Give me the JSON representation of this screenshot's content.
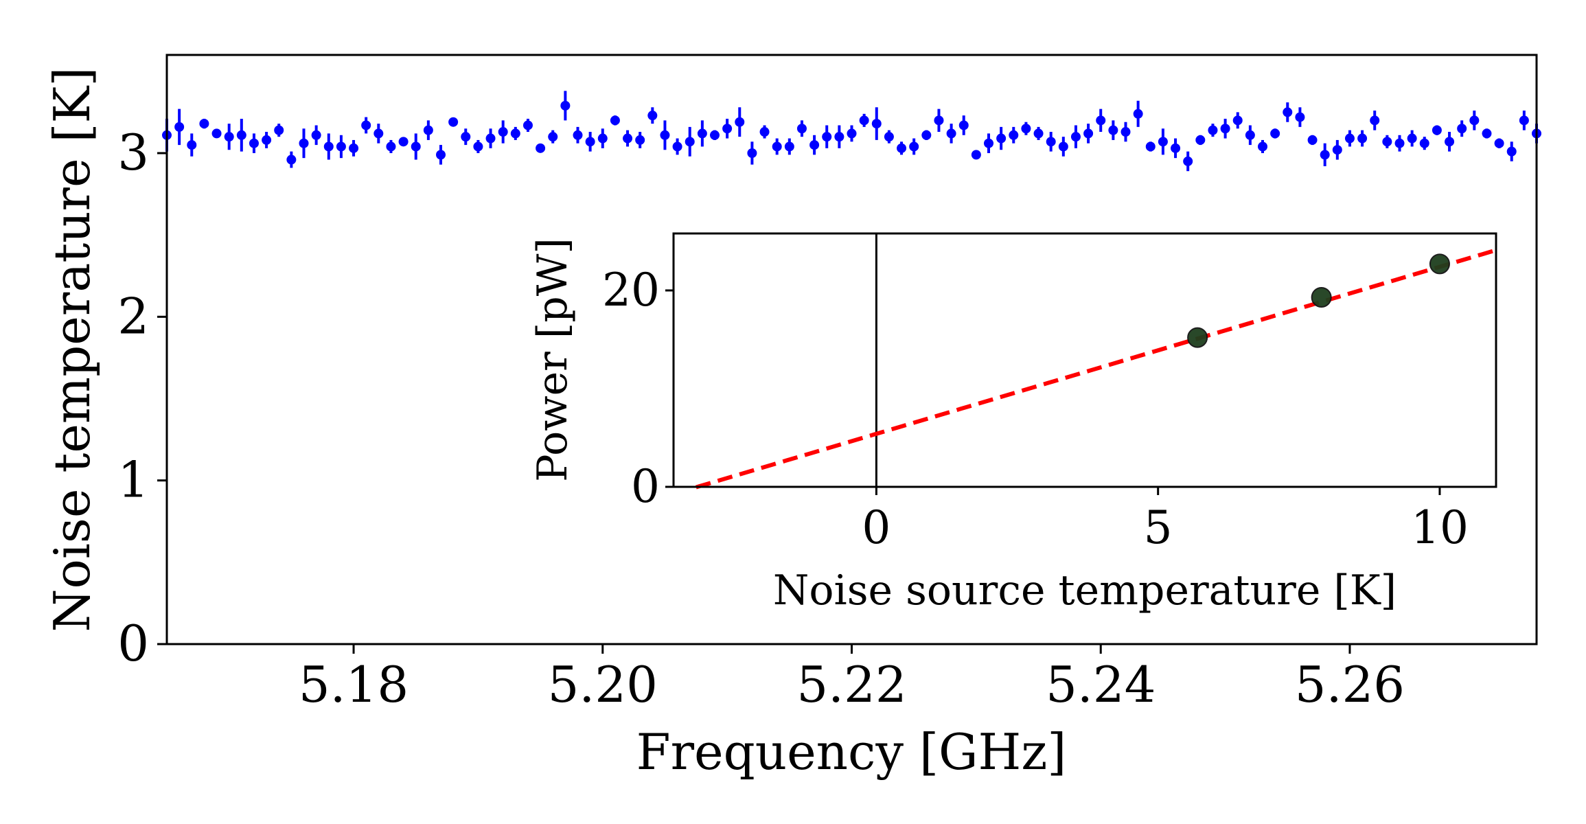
{
  "chart_data": [
    {
      "type": "scatter",
      "name": "main",
      "xlabel": "Frequency [GHz]",
      "ylabel": "Noise temperature [K]",
      "xlim": [
        5.165,
        5.275
      ],
      "ylim": [
        0,
        3.6
      ],
      "xticks": [
        5.18,
        5.2,
        5.22,
        5.24,
        5.26
      ],
      "xtick_labels": [
        "5.18",
        "5.20",
        "5.22",
        "5.24",
        "5.26"
      ],
      "yticks": [
        0,
        1,
        2,
        3
      ],
      "ytick_labels": [
        "0",
        "1",
        "2",
        "3"
      ],
      "series": [
        {
          "name": "noise temperature",
          "color": "#0000ff",
          "x_start": 5.165,
          "x_step": 0.001,
          "y": [
            3.11,
            3.16,
            3.05,
            3.18,
            3.12,
            3.1,
            3.11,
            3.06,
            3.08,
            3.14,
            2.96,
            3.06,
            3.11,
            3.04,
            3.04,
            3.03,
            3.17,
            3.12,
            3.04,
            3.07,
            3.04,
            3.14,
            2.99,
            3.19,
            3.1,
            3.04,
            3.09,
            3.13,
            3.12,
            3.17,
            3.03,
            3.1,
            3.29,
            3.11,
            3.07,
            3.09,
            3.2,
            3.09,
            3.08,
            3.23,
            3.11,
            3.04,
            3.07,
            3.12,
            3.11,
            3.15,
            3.19,
            3.0,
            3.13,
            3.04,
            3.04,
            3.15,
            3.05,
            3.1,
            3.1,
            3.12,
            3.2,
            3.18,
            3.1,
            3.03,
            3.04,
            3.11,
            3.2,
            3.12,
            3.17,
            2.99,
            3.06,
            3.09,
            3.11,
            3.15,
            3.12,
            3.07,
            3.04,
            3.1,
            3.12,
            3.2,
            3.14,
            3.13,
            3.24,
            3.04,
            3.07,
            3.03,
            2.95,
            3.08,
            3.14,
            3.15,
            3.2,
            3.11,
            3.04,
            3.12,
            3.25,
            3.22,
            3.08,
            2.99,
            3.02,
            3.09,
            3.09,
            3.2,
            3.07,
            3.06,
            3.09,
            3.06,
            3.14,
            3.07,
            3.15,
            3.2,
            3.12,
            3.06,
            3.01,
            3.2,
            3.12
          ],
          "yerr": [
            0.1,
            0.11,
            0.07,
            0.03,
            0.02,
            0.08,
            0.1,
            0.06,
            0.05,
            0.04,
            0.05,
            0.09,
            0.06,
            0.08,
            0.07,
            0.05,
            0.05,
            0.06,
            0.04,
            0.02,
            0.08,
            0.06,
            0.06,
            0.02,
            0.05,
            0.04,
            0.06,
            0.07,
            0.04,
            0.04,
            0.02,
            0.04,
            0.09,
            0.05,
            0.06,
            0.06,
            0.03,
            0.05,
            0.05,
            0.05,
            0.09,
            0.05,
            0.09,
            0.08,
            0.03,
            0.06,
            0.09,
            0.07,
            0.04,
            0.05,
            0.05,
            0.05,
            0.06,
            0.07,
            0.07,
            0.05,
            0.04,
            0.1,
            0.04,
            0.04,
            0.05,
            0.03,
            0.07,
            0.06,
            0.06,
            0.02,
            0.06,
            0.07,
            0.05,
            0.04,
            0.04,
            0.06,
            0.06,
            0.07,
            0.06,
            0.07,
            0.06,
            0.06,
            0.08,
            0.03,
            0.08,
            0.06,
            0.06,
            0.03,
            0.04,
            0.06,
            0.05,
            0.06,
            0.04,
            0.03,
            0.06,
            0.06,
            0.03,
            0.07,
            0.06,
            0.05,
            0.05,
            0.06,
            0.04,
            0.05,
            0.05,
            0.04,
            0.03,
            0.06,
            0.05,
            0.06,
            0.03,
            0.03,
            0.06,
            0.06,
            0.06
          ]
        }
      ]
    },
    {
      "type": "scatter",
      "name": "inset",
      "xlabel": "Noise source temperature [K]",
      "ylabel": "Power [pW]",
      "xlim": [
        -3.6,
        11.0
      ],
      "ylim": [
        0,
        25.8
      ],
      "xticks": [
        0,
        5,
        10
      ],
      "xtick_labels": [
        "0",
        "5",
        "10"
      ],
      "yticks": [
        0,
        20
      ],
      "ytick_labels": [
        "0",
        "20"
      ],
      "vline_x": 0,
      "points": {
        "name": "measurements",
        "color": "#1e3f1e",
        "x": [
          5.7,
          7.9,
          10.0
        ],
        "y": [
          15.2,
          19.3,
          22.7
        ]
      },
      "fit": {
        "name": "linear fit",
        "color": "#ff0000",
        "slope": 1.7,
        "intercept": 5.4,
        "x_range": [
          -3.2,
          11.0
        ]
      }
    }
  ]
}
